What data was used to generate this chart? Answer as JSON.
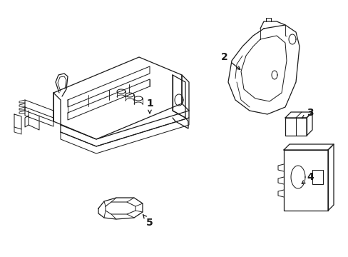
{
  "background_color": "#ffffff",
  "line_color": "#1a1a1a",
  "line_width": 0.9,
  "label_fontsize": 10,
  "figsize": [
    4.89,
    3.6
  ],
  "dpi": 100
}
